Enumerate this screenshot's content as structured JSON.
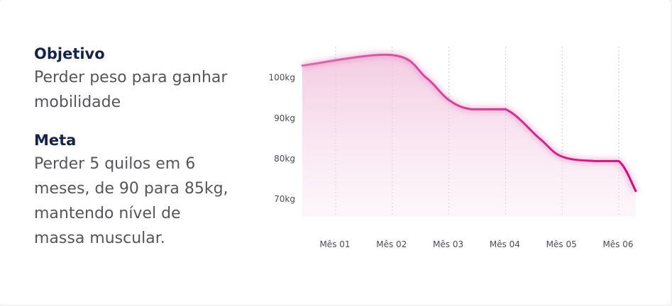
{
  "objective": {
    "label": "Objetivo",
    "text_lines": [
      "Perder peso para ganhar",
      "mobilidade"
    ]
  },
  "meta": {
    "label": "Meta",
    "text_lines": [
      "Perder 5 quilos em 6",
      "meses, de 90 para 85kg,",
      "mantendo nível de",
      "massa muscular."
    ]
  },
  "chart_data": {
    "type": "line",
    "categories": [
      "Mês 01",
      "Mês 02",
      "Mês 03",
      "Mês 04",
      "Mês 05",
      "Mês 06"
    ],
    "y_tick_labels": [
      "100kg",
      "90kg",
      "80kg",
      "70kg"
    ],
    "y_ticks": [
      100,
      90,
      80,
      70
    ],
    "ylim": [
      66,
      108
    ],
    "grid": "vertical dotted lines",
    "legend": "none",
    "series": [
      {
        "color": "#d12a8f",
        "x": [
          0.3,
          1.0,
          1.6,
          2.0,
          2.4,
          3.0,
          3.6,
          4.0,
          4.6,
          5.0,
          5.3
        ],
        "values": [
          103.0,
          105.6,
          100.0,
          94.5,
          92.2,
          92.2,
          85.0,
          80.5,
          79.4,
          79.4,
          72.0
        ]
      }
    ],
    "line_gradient": [
      "#d66fae",
      "#c8117e"
    ],
    "fill_color": "#f2cde3"
  }
}
